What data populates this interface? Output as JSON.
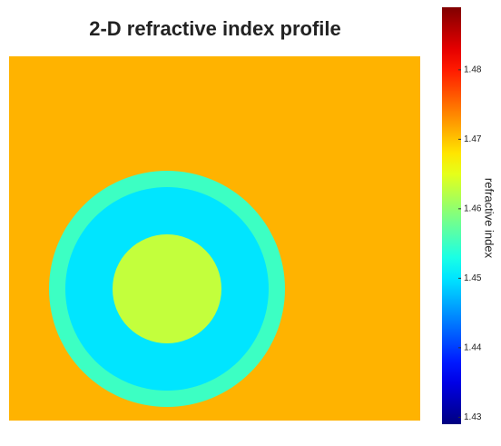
{
  "chart_data": {
    "type": "heatmap",
    "title": "2-D refractive index profile",
    "colorbar_label": "refractive index",
    "colormap": "jet",
    "clim": [
      1.429,
      1.489
    ],
    "cticks": [
      1.43,
      1.44,
      1.45,
      1.46,
      1.47,
      1.48
    ],
    "values": [
      1.471,
      1.455,
      1.45,
      1.463
    ]
  }
}
